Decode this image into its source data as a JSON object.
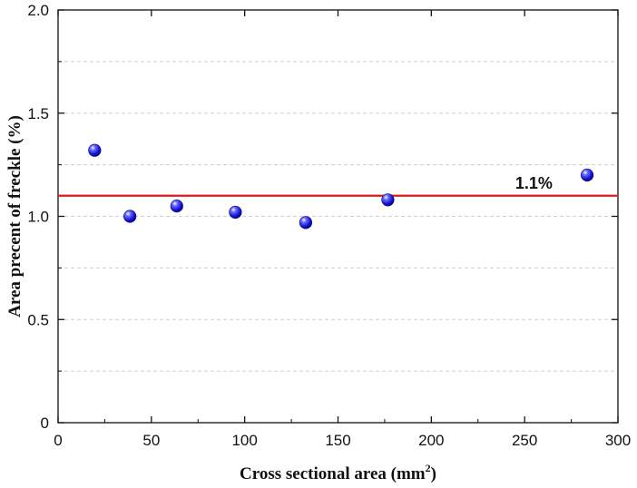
{
  "chart_data": {
    "type": "scatter",
    "xlabel": "Cross sectional area (mm",
    "xlabel_superscript": "2",
    "xlabel_suffix": ")",
    "ylabel": "Area precent of freckle (%)",
    "xlim": [
      0,
      300
    ],
    "ylim": [
      0,
      2.0
    ],
    "x_ticks": [
      0,
      50,
      100,
      150,
      200,
      250,
      300
    ],
    "x_tick_labels": [
      "0",
      "50",
      "100",
      "150",
      "200",
      "250",
      "300"
    ],
    "y_ticks": [
      0,
      0.5,
      1.0,
      1.5,
      2.0
    ],
    "y_tick_labels": [
      "0",
      "0.5",
      "1.0",
      "1.5",
      "2.0"
    ],
    "grid": "horizontal dashed",
    "series": [
      {
        "x": [
          19.6,
          38.5,
          63.6,
          95.0,
          132.7,
          176.7,
          283.5
        ],
        "y": [
          1.32,
          1.0,
          1.05,
          1.02,
          0.97,
          1.08,
          1.2
        ],
        "color": "#1515e0"
      }
    ],
    "reference_line": {
      "y": 1.1,
      "color": "#e81616",
      "label": "1.1%"
    }
  }
}
